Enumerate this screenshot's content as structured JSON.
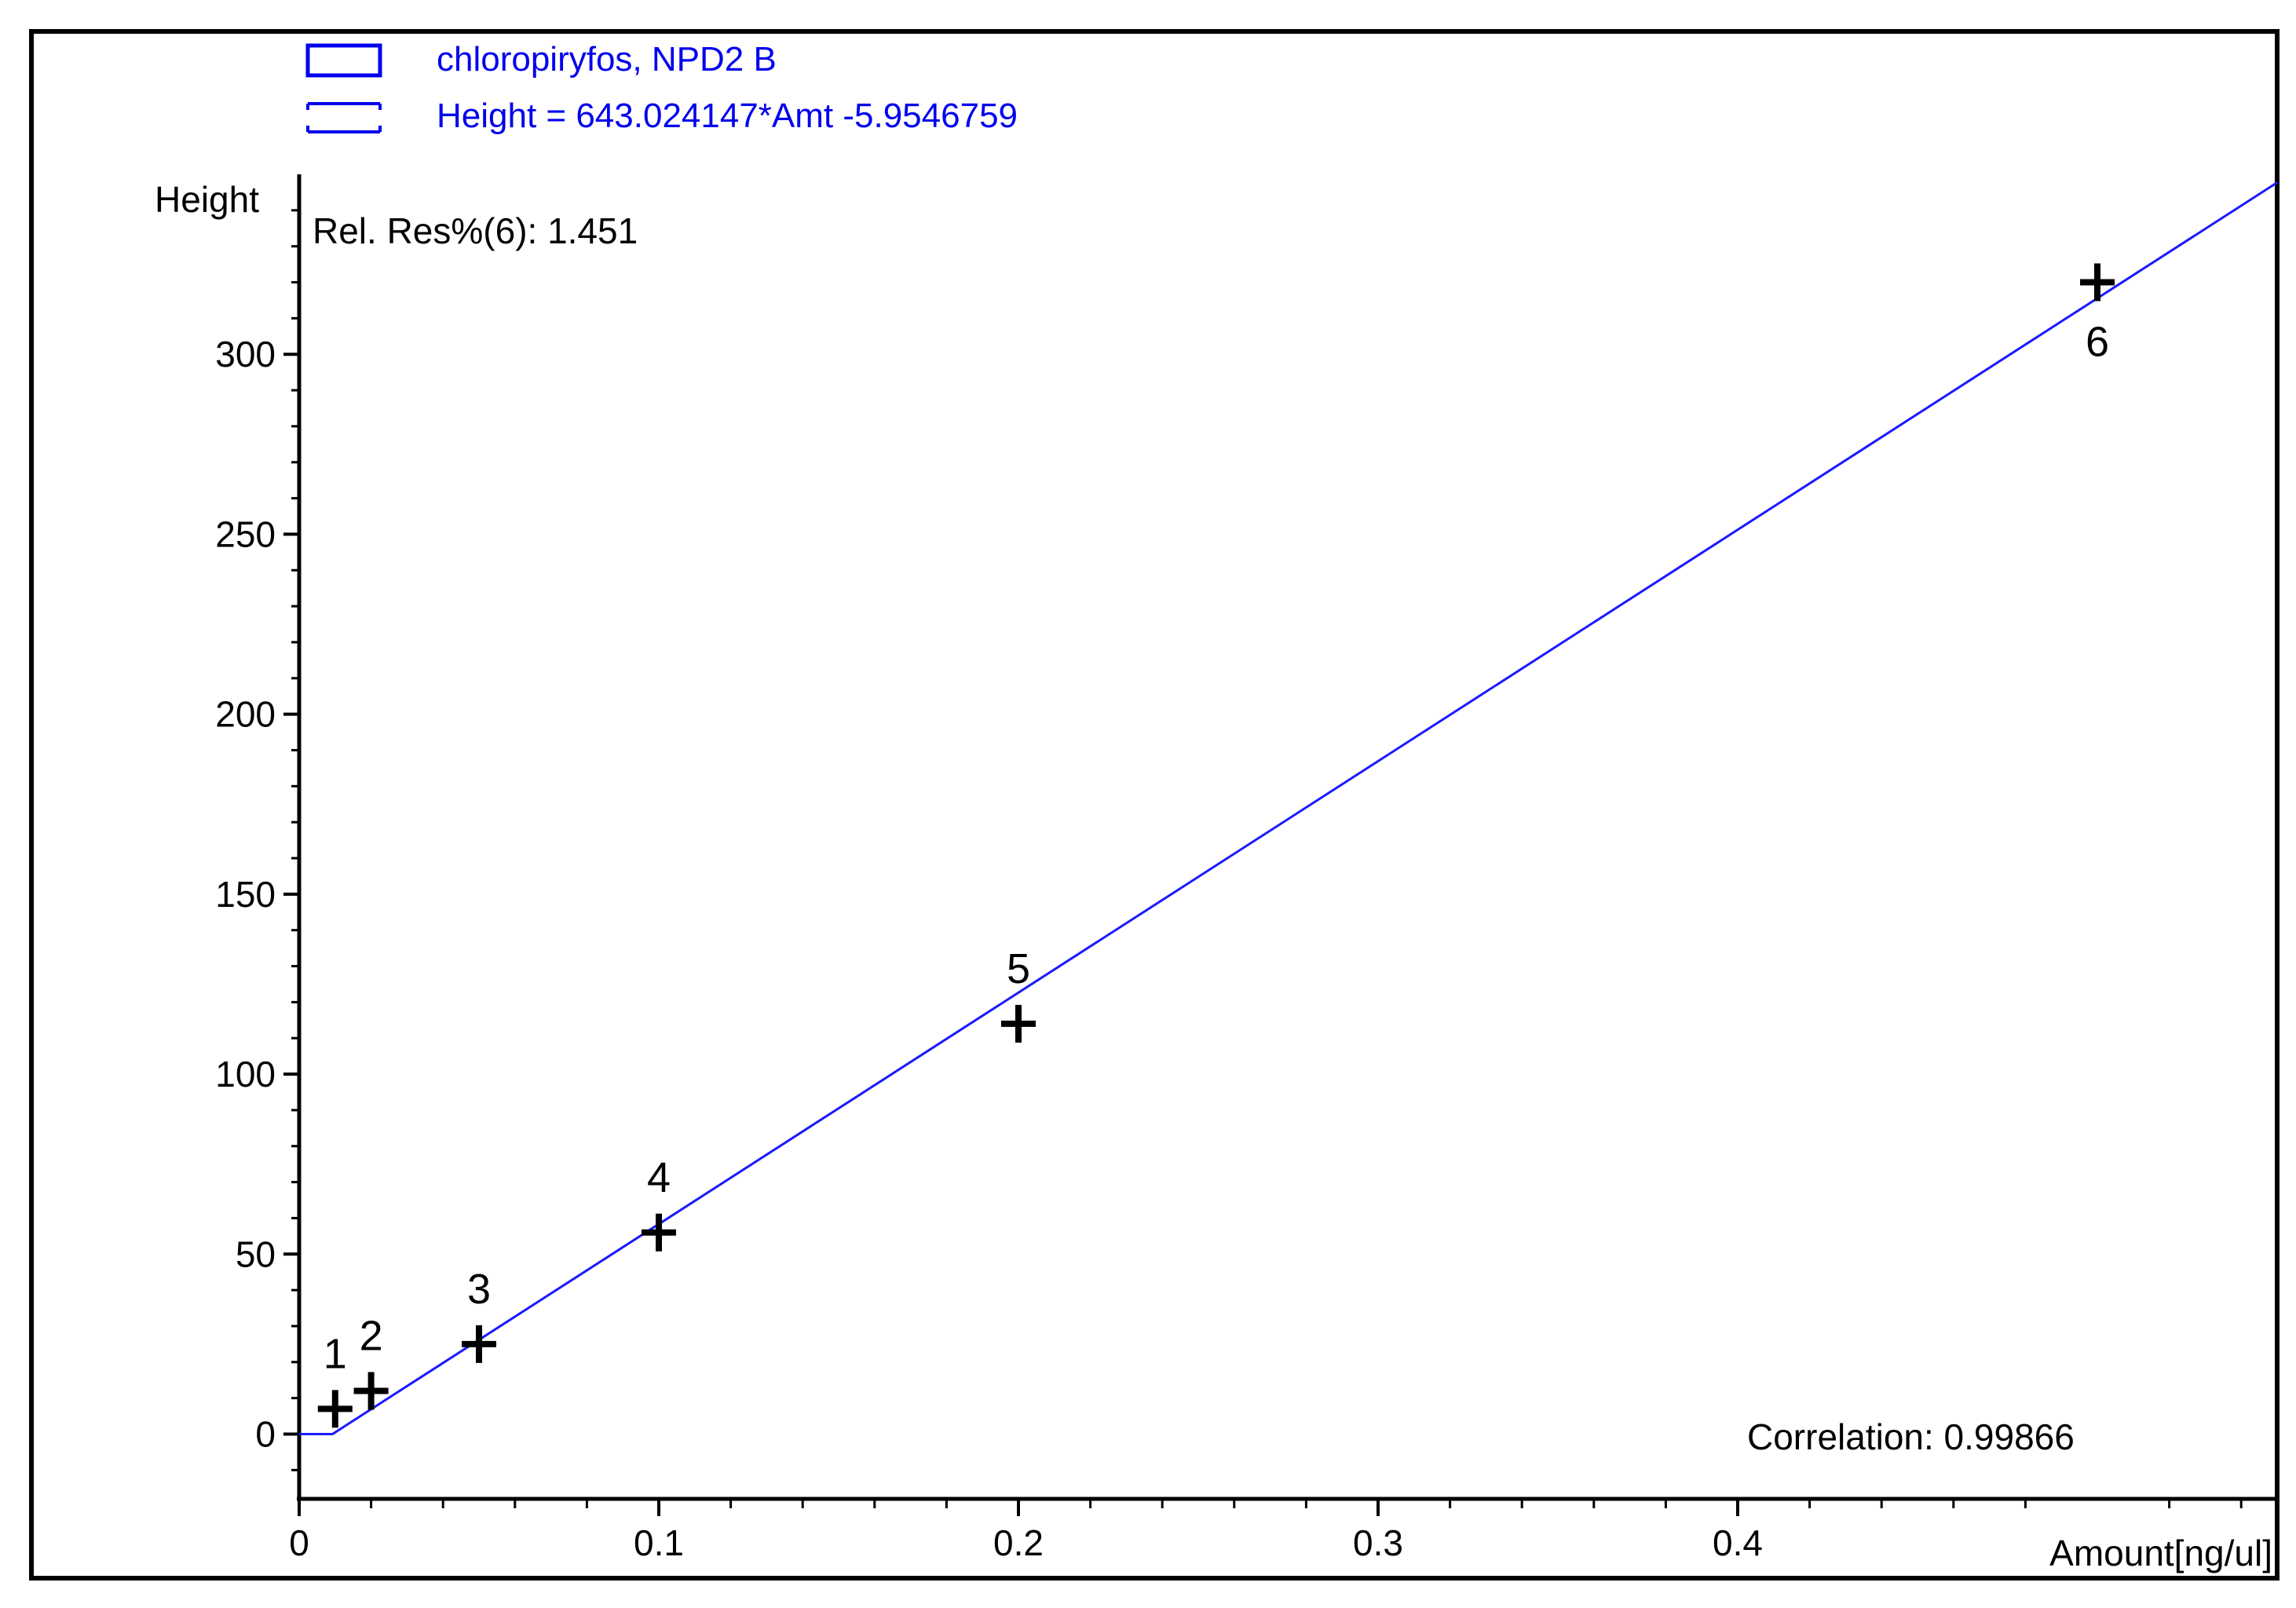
{
  "legend": {
    "series_label": "chloropiryfos, NPD2 B",
    "fit_label": "Height = 643.024147*Amt -5.9546759"
  },
  "annotations": {
    "rel_res": "Rel. Res%(6): 1.451",
    "correlation": "Correlation: 0.99866"
  },
  "chart_data": {
    "type": "scatter",
    "xlabel": "Amount[ng/ul]",
    "ylabel": "Height",
    "xlim": [
      0,
      0.55
    ],
    "ylim": [
      -18,
      350
    ],
    "xticks": [
      0,
      0.1,
      0.2,
      0.3,
      0.4
    ],
    "xtick_labels": [
      "0",
      "0.1",
      "0.2",
      "0.3",
      "0.4"
    ],
    "yticks": [
      0,
      50,
      100,
      150,
      200,
      250,
      300
    ],
    "ytick_labels": [
      "0",
      "50",
      "100",
      "150",
      "200",
      "250",
      "300"
    ],
    "grid": false,
    "series": [
      {
        "name": "chloropiryfos, NPD2 B",
        "x": [
          0.01,
          0.02,
          0.05,
          0.1,
          0.2,
          0.5
        ],
        "y": [
          7,
          12,
          25,
          56,
          114,
          320
        ],
        "point_labels": [
          "1",
          "2",
          "3",
          "4",
          "5",
          "6"
        ]
      }
    ],
    "fit": {
      "name": "Height = 643.024147*Amt -5.9546759",
      "slope": 643.024147,
      "intercept": -5.9546759
    },
    "colors": {
      "fit_line": "#1a1aff",
      "legend": "#0000ee",
      "markers": "#000000",
      "axes": "#000000"
    }
  }
}
